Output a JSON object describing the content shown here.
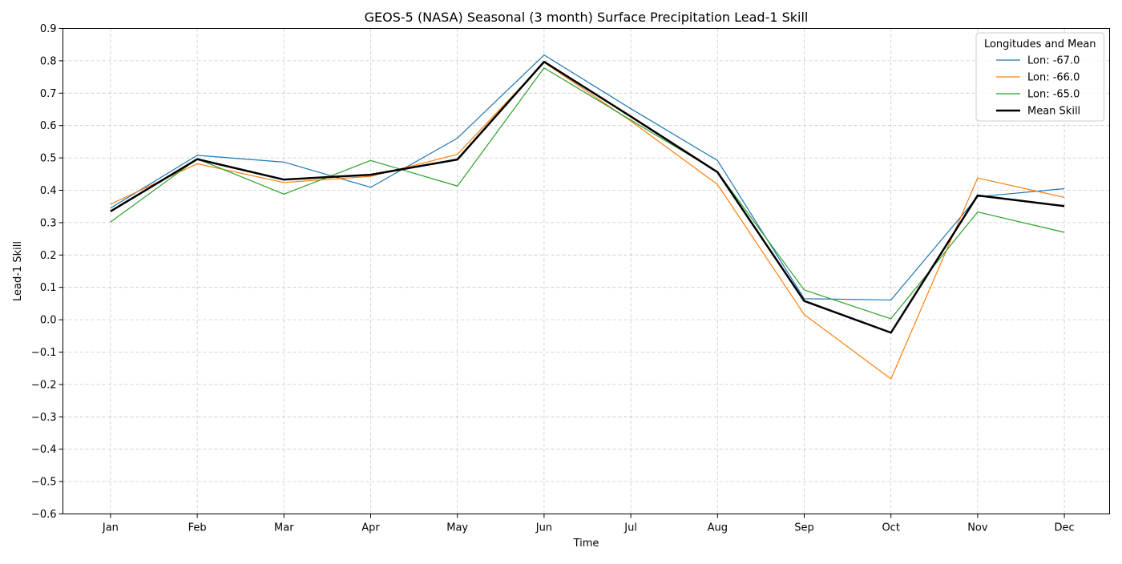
{
  "chart_data": {
    "type": "line",
    "title": "GEOS-5 (NASA) Seasonal (3 month) Surface Precipitation Lead-1 Skill",
    "xlabel": "Time",
    "ylabel": "Lead-1 Skill",
    "categories": [
      "Jan",
      "Feb",
      "Mar",
      "Apr",
      "May",
      "Jun",
      "Jul",
      "Aug",
      "Sep",
      "Oct",
      "Nov",
      "Dec"
    ],
    "ylim": [
      -0.6,
      0.9
    ],
    "yticks": [
      -0.6,
      -0.5,
      -0.4,
      -0.3,
      -0.2,
      -0.1,
      0.0,
      0.1,
      0.2,
      0.3,
      0.4,
      0.5,
      0.6,
      0.7,
      0.8,
      0.9
    ],
    "ytick_labels": [
      "−0.6",
      "−0.5",
      "−0.4",
      "−0.3",
      "−0.2",
      "−0.1",
      "0.0",
      "0.1",
      "0.2",
      "0.3",
      "0.4",
      "0.5",
      "0.6",
      "0.7",
      "0.8",
      "0.9"
    ],
    "grid": true,
    "legend": {
      "title": "Longitudes and Mean",
      "placement": "top-right"
    },
    "series": [
      {
        "name": "Lon: -67.0",
        "color": "#1f77b4",
        "style": "thin",
        "values": [
          0.345,
          0.508,
          0.487,
          0.409,
          0.561,
          0.818,
          0.652,
          0.492,
          0.065,
          0.061,
          0.38,
          0.405
        ]
      },
      {
        "name": "Lon: -66.0",
        "color": "#ff7f0e",
        "style": "thin",
        "values": [
          0.357,
          0.482,
          0.424,
          0.443,
          0.511,
          0.795,
          0.614,
          0.418,
          0.016,
          -0.183,
          0.438,
          0.378
        ]
      },
      {
        "name": "Lon: -65.0",
        "color": "#2ca02c",
        "style": "thin",
        "values": [
          0.302,
          0.497,
          0.388,
          0.492,
          0.413,
          0.778,
          0.617,
          0.457,
          0.092,
          0.003,
          0.333,
          0.27
        ]
      },
      {
        "name": "Mean Skill",
        "color": "#000000",
        "style": "thick",
        "values": [
          0.335,
          0.496,
          0.433,
          0.448,
          0.495,
          0.797,
          0.628,
          0.456,
          0.058,
          -0.04,
          0.384,
          0.351
        ]
      }
    ]
  }
}
